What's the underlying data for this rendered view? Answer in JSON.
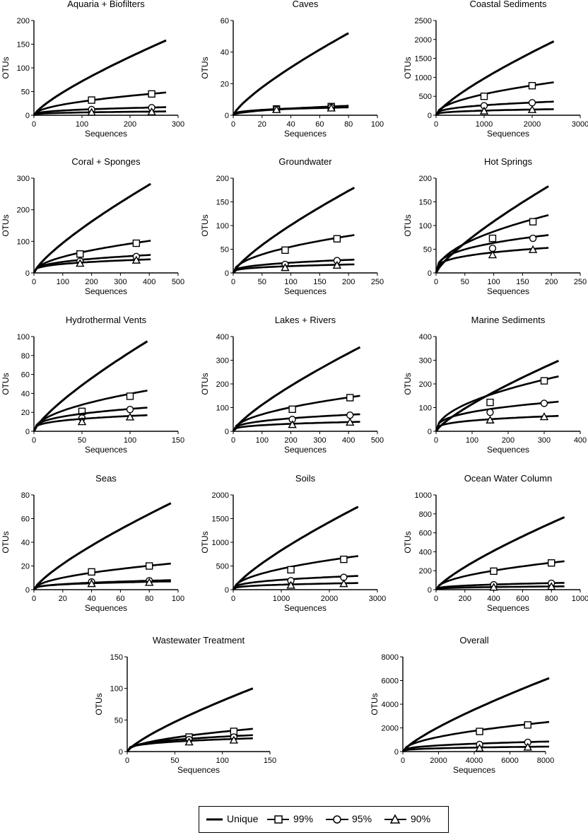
{
  "figure": {
    "y_axis_label": "OTUs",
    "x_axis_label": "Sequences"
  },
  "legend": {
    "items": [
      {
        "label": "Unique",
        "marker": "none"
      },
      {
        "label": "99%",
        "marker": "square"
      },
      {
        "label": "95%",
        "marker": "circle"
      },
      {
        "label": "90%",
        "marker": "triangle"
      }
    ]
  },
  "chart_data": [
    {
      "type": "line",
      "title": "Aquaria + Biofilters",
      "xlabel": "Sequences",
      "ylabel": "OTUs",
      "xlim": [
        0,
        300
      ],
      "ylim": [
        0,
        200
      ],
      "xticks": [
        0,
        100,
        200,
        300
      ],
      "yticks": [
        0,
        50,
        100,
        150,
        200
      ],
      "x_end": 275,
      "series": [
        {
          "name": "Unique",
          "end": 158,
          "markers": []
        },
        {
          "name": "99%",
          "end": 48,
          "markers": [
            {
              "x": 120,
              "y": 32
            },
            {
              "x": 245,
              "y": 45
            }
          ]
        },
        {
          "name": "95%",
          "end": 17,
          "markers": [
            {
              "x": 120,
              "y": 12
            },
            {
              "x": 245,
              "y": 16
            }
          ]
        },
        {
          "name": "90%",
          "end": 8,
          "markers": [
            {
              "x": 120,
              "y": 6
            },
            {
              "x": 245,
              "y": 7
            }
          ]
        }
      ]
    },
    {
      "type": "line",
      "title": "Caves",
      "xlabel": "Sequences",
      "ylabel": "OTUs",
      "xlim": [
        0,
        100
      ],
      "ylim": [
        0,
        60
      ],
      "xticks": [
        0,
        20,
        40,
        60,
        80,
        100
      ],
      "yticks": [
        0,
        20,
        40,
        60
      ],
      "x_end": 80,
      "series": [
        {
          "name": "Unique",
          "end": 52,
          "markers": []
        },
        {
          "name": "99%",
          "end": 6,
          "markers": [
            {
              "x": 30,
              "y": 4
            },
            {
              "x": 68,
              "y": 5.5
            }
          ]
        },
        {
          "name": "95%",
          "end": 5.5,
          "markers": [
            {
              "x": 30,
              "y": 3.8
            },
            {
              "x": 68,
              "y": 5
            }
          ]
        },
        {
          "name": "90%",
          "end": 5,
          "markers": [
            {
              "x": 30,
              "y": 3.5
            },
            {
              "x": 68,
              "y": 4.5
            }
          ]
        }
      ]
    },
    {
      "type": "line",
      "title": "Coastal Sediments",
      "xlabel": "Sequences",
      "ylabel": "OTUs",
      "xlim": [
        0,
        3000
      ],
      "ylim": [
        0,
        2500
      ],
      "xticks": [
        0,
        1000,
        2000,
        3000
      ],
      "yticks": [
        0,
        500,
        1000,
        1500,
        2000,
        2500
      ],
      "x_end": 2450,
      "series": [
        {
          "name": "Unique",
          "end": 1950,
          "markers": []
        },
        {
          "name": "99%",
          "end": 870,
          "markers": [
            {
              "x": 1000,
              "y": 500
            },
            {
              "x": 2000,
              "y": 780
            }
          ]
        },
        {
          "name": "95%",
          "end": 360,
          "markers": [
            {
              "x": 1000,
              "y": 250
            },
            {
              "x": 2000,
              "y": 330
            }
          ]
        },
        {
          "name": "90%",
          "end": 160,
          "markers": [
            {
              "x": 1000,
              "y": 110
            },
            {
              "x": 2000,
              "y": 145
            }
          ]
        }
      ]
    },
    {
      "type": "line",
      "title": "Coral + Sponges",
      "xlabel": "Sequences",
      "ylabel": "OTUs",
      "xlim": [
        0,
        500
      ],
      "ylim": [
        0,
        300
      ],
      "xticks": [
        0,
        100,
        200,
        300,
        400,
        500
      ],
      "yticks": [
        0,
        100,
        200,
        300
      ],
      "x_end": 405,
      "series": [
        {
          "name": "Unique",
          "end": 282,
          "markers": []
        },
        {
          "name": "99%",
          "end": 102,
          "markers": [
            {
              "x": 160,
              "y": 60
            },
            {
              "x": 355,
              "y": 94
            }
          ]
        },
        {
          "name": "95%",
          "end": 57,
          "markers": [
            {
              "x": 160,
              "y": 37
            },
            {
              "x": 355,
              "y": 52
            }
          ]
        },
        {
          "name": "90%",
          "end": 43,
          "markers": [
            {
              "x": 160,
              "y": 30
            },
            {
              "x": 355,
              "y": 40
            }
          ]
        }
      ]
    },
    {
      "type": "line",
      "title": "Groundwater",
      "xlabel": "Sequences",
      "ylabel": "OTUs",
      "xlim": [
        0,
        250
      ],
      "ylim": [
        0,
        200
      ],
      "xticks": [
        0,
        50,
        100,
        150,
        200,
        250
      ],
      "yticks": [
        0,
        50,
        100,
        150,
        200
      ],
      "x_end": 210,
      "series": [
        {
          "name": "Unique",
          "end": 180,
          "markers": []
        },
        {
          "name": "99%",
          "end": 80,
          "markers": [
            {
              "x": 90,
              "y": 48
            },
            {
              "x": 180,
              "y": 72
            }
          ]
        },
        {
          "name": "95%",
          "end": 28,
          "markers": [
            {
              "x": 90,
              "y": 18
            },
            {
              "x": 180,
              "y": 26
            }
          ]
        },
        {
          "name": "90%",
          "end": 18,
          "markers": [
            {
              "x": 90,
              "y": 11
            },
            {
              "x": 180,
              "y": 16
            }
          ]
        }
      ]
    },
    {
      "type": "line",
      "title": "Hot Springs",
      "xlabel": "Sequences",
      "ylabel": "OTUs",
      "xlim": [
        0,
        250
      ],
      "ylim": [
        0,
        200
      ],
      "xticks": [
        0,
        50,
        100,
        150,
        200,
        250
      ],
      "yticks": [
        0,
        50,
        100,
        150,
        200
      ],
      "x_end": 195,
      "series": [
        {
          "name": "Unique",
          "end": 183,
          "markers": []
        },
        {
          "name": "99%",
          "end": 122,
          "markers": [
            {
              "x": 98,
              "y": 73
            },
            {
              "x": 168,
              "y": 108
            }
          ]
        },
        {
          "name": "95%",
          "end": 80,
          "markers": [
            {
              "x": 98,
              "y": 52
            },
            {
              "x": 168,
              "y": 73
            }
          ]
        },
        {
          "name": "90%",
          "end": 53,
          "markers": [
            {
              "x": 98,
              "y": 38
            },
            {
              "x": 168,
              "y": 49
            }
          ]
        }
      ]
    },
    {
      "type": "line",
      "title": "Hydrothermal Vents",
      "xlabel": "Sequences",
      "ylabel": "OTUs",
      "xlim": [
        0,
        150
      ],
      "ylim": [
        0,
        100
      ],
      "xticks": [
        0,
        50,
        100,
        150
      ],
      "yticks": [
        0,
        20,
        40,
        60,
        80,
        100
      ],
      "x_end": 118,
      "series": [
        {
          "name": "Unique",
          "end": 95,
          "markers": []
        },
        {
          "name": "99%",
          "end": 43,
          "markers": [
            {
              "x": 50,
              "y": 21
            },
            {
              "x": 100,
              "y": 37
            }
          ]
        },
        {
          "name": "95%",
          "end": 25,
          "markers": [
            {
              "x": 50,
              "y": 14
            },
            {
              "x": 100,
              "y": 23
            }
          ]
        },
        {
          "name": "90%",
          "end": 17,
          "markers": [
            {
              "x": 50,
              "y": 10
            },
            {
              "x": 100,
              "y": 15
            }
          ]
        }
      ]
    },
    {
      "type": "line",
      "title": "Lakes + Rivers",
      "xlabel": "Sequences",
      "ylabel": "OTUs",
      "xlim": [
        0,
        500
      ],
      "ylim": [
        0,
        400
      ],
      "xticks": [
        0,
        100,
        200,
        300,
        400,
        500
      ],
      "yticks": [
        0,
        100,
        200,
        300,
        400
      ],
      "x_end": 440,
      "series": [
        {
          "name": "Unique",
          "end": 355,
          "markers": []
        },
        {
          "name": "99%",
          "end": 150,
          "markers": [
            {
              "x": 205,
              "y": 93
            },
            {
              "x": 405,
              "y": 142
            }
          ]
        },
        {
          "name": "95%",
          "end": 72,
          "markers": [
            {
              "x": 205,
              "y": 50
            },
            {
              "x": 405,
              "y": 68
            }
          ]
        },
        {
          "name": "90%",
          "end": 40,
          "markers": [
            {
              "x": 205,
              "y": 28
            },
            {
              "x": 405,
              "y": 38
            }
          ]
        }
      ]
    },
    {
      "type": "line",
      "title": "Marine Sediments",
      "xlabel": "Sequences",
      "ylabel": "OTUs",
      "xlim": [
        0,
        400
      ],
      "ylim": [
        0,
        400
      ],
      "xticks": [
        0,
        100,
        200,
        300,
        400
      ],
      "yticks": [
        0,
        100,
        200,
        300,
        400
      ],
      "x_end": 340,
      "series": [
        {
          "name": "Unique",
          "end": 298,
          "markers": []
        },
        {
          "name": "99%",
          "end": 232,
          "markers": [
            {
              "x": 150,
              "y": 122
            },
            {
              "x": 300,
              "y": 213
            }
          ]
        },
        {
          "name": "95%",
          "end": 125,
          "markers": [
            {
              "x": 150,
              "y": 80
            },
            {
              "x": 300,
              "y": 118
            }
          ]
        },
        {
          "name": "90%",
          "end": 65,
          "markers": [
            {
              "x": 150,
              "y": 47
            },
            {
              "x": 300,
              "y": 61
            }
          ]
        }
      ]
    },
    {
      "type": "line",
      "title": "Seas",
      "xlabel": "Sequences",
      "ylabel": "OTUs",
      "xlim": [
        0,
        100
      ],
      "ylim": [
        0,
        80
      ],
      "xticks": [
        0,
        20,
        40,
        60,
        80,
        100
      ],
      "yticks": [
        0,
        20,
        40,
        60,
        80
      ],
      "x_end": 95,
      "series": [
        {
          "name": "Unique",
          "end": 73,
          "markers": []
        },
        {
          "name": "99%",
          "end": 22,
          "markers": [
            {
              "x": 40,
              "y": 15
            },
            {
              "x": 80,
              "y": 20
            }
          ]
        },
        {
          "name": "95%",
          "end": 8,
          "markers": [
            {
              "x": 40,
              "y": 6.5
            },
            {
              "x": 80,
              "y": 7.5
            }
          ]
        },
        {
          "name": "90%",
          "end": 7,
          "markers": [
            {
              "x": 40,
              "y": 5
            },
            {
              "x": 80,
              "y": 6
            }
          ]
        }
      ]
    },
    {
      "type": "line",
      "title": "Soils",
      "xlabel": "Sequences",
      "ylabel": "OTUs",
      "xlim": [
        0,
        3000
      ],
      "ylim": [
        0,
        2000
      ],
      "xticks": [
        0,
        1000,
        2000,
        3000
      ],
      "yticks": [
        0,
        500,
        1000,
        1500,
        2000
      ],
      "x_end": 2600,
      "series": [
        {
          "name": "Unique",
          "end": 1750,
          "markers": []
        },
        {
          "name": "99%",
          "end": 710,
          "markers": [
            {
              "x": 1200,
              "y": 420
            },
            {
              "x": 2300,
              "y": 640
            }
          ]
        },
        {
          "name": "95%",
          "end": 290,
          "markers": [
            {
              "x": 1200,
              "y": 190
            },
            {
              "x": 2300,
              "y": 260
            }
          ]
        },
        {
          "name": "90%",
          "end": 140,
          "markers": [
            {
              "x": 1200,
              "y": 90
            },
            {
              "x": 2300,
              "y": 125
            }
          ]
        }
      ]
    },
    {
      "type": "line",
      "title": "Ocean Water Column",
      "xlabel": "Sequences",
      "ylabel": "OTUs",
      "xlim": [
        0,
        1000
      ],
      "ylim": [
        0,
        1000
      ],
      "xticks": [
        0,
        200,
        400,
        600,
        800,
        1000
      ],
      "yticks": [
        0,
        200,
        400,
        600,
        800,
        1000
      ],
      "x_end": 890,
      "series": [
        {
          "name": "Unique",
          "end": 765,
          "markers": []
        },
        {
          "name": "99%",
          "end": 300,
          "markers": [
            {
              "x": 400,
              "y": 195
            },
            {
              "x": 800,
              "y": 282
            }
          ]
        },
        {
          "name": "95%",
          "end": 72,
          "markers": [
            {
              "x": 400,
              "y": 52
            },
            {
              "x": 800,
              "y": 68
            }
          ]
        },
        {
          "name": "90%",
          "end": 35,
          "markers": [
            {
              "x": 400,
              "y": 25
            },
            {
              "x": 800,
              "y": 32
            }
          ]
        }
      ]
    },
    {
      "type": "line",
      "title": "Wastewater Treatment",
      "xlabel": "Sequences",
      "ylabel": "OTUs",
      "xlim": [
        0,
        150
      ],
      "ylim": [
        0,
        150
      ],
      "xticks": [
        0,
        50,
        100,
        150
      ],
      "yticks": [
        0,
        50,
        100,
        150
      ],
      "x_end": 132,
      "series": [
        {
          "name": "Unique",
          "end": 100,
          "markers": []
        },
        {
          "name": "99%",
          "end": 36,
          "markers": [
            {
              "x": 65,
              "y": 23
            },
            {
              "x": 112,
              "y": 32
            }
          ]
        },
        {
          "name": "95%",
          "end": 26,
          "markers": [
            {
              "x": 65,
              "y": 19
            },
            {
              "x": 112,
              "y": 23
            }
          ]
        },
        {
          "name": "90%",
          "end": 21,
          "markers": [
            {
              "x": 65,
              "y": 15
            },
            {
              "x": 112,
              "y": 18
            }
          ]
        }
      ]
    },
    {
      "type": "line",
      "title": "Overall",
      "xlabel": "Sequences",
      "ylabel": "OTUs",
      "xlim": [
        0,
        8000
      ],
      "ylim": [
        0,
        8000
      ],
      "xticks": [
        0,
        2000,
        4000,
        6000,
        8000
      ],
      "yticks": [
        0,
        2000,
        4000,
        6000,
        8000
      ],
      "x_end": 8200,
      "series": [
        {
          "name": "Unique",
          "end": 6200,
          "markers": []
        },
        {
          "name": "99%",
          "end": 2500,
          "markers": [
            {
              "x": 4300,
              "y": 1700
            },
            {
              "x": 7000,
              "y": 2250
            }
          ]
        },
        {
          "name": "95%",
          "end": 850,
          "markers": [
            {
              "x": 4300,
              "y": 600
            },
            {
              "x": 7000,
              "y": 780
            }
          ]
        },
        {
          "name": "90%",
          "end": 420,
          "markers": [
            {
              "x": 4300,
              "y": 280
            },
            {
              "x": 7000,
              "y": 370
            }
          ]
        }
      ]
    }
  ]
}
